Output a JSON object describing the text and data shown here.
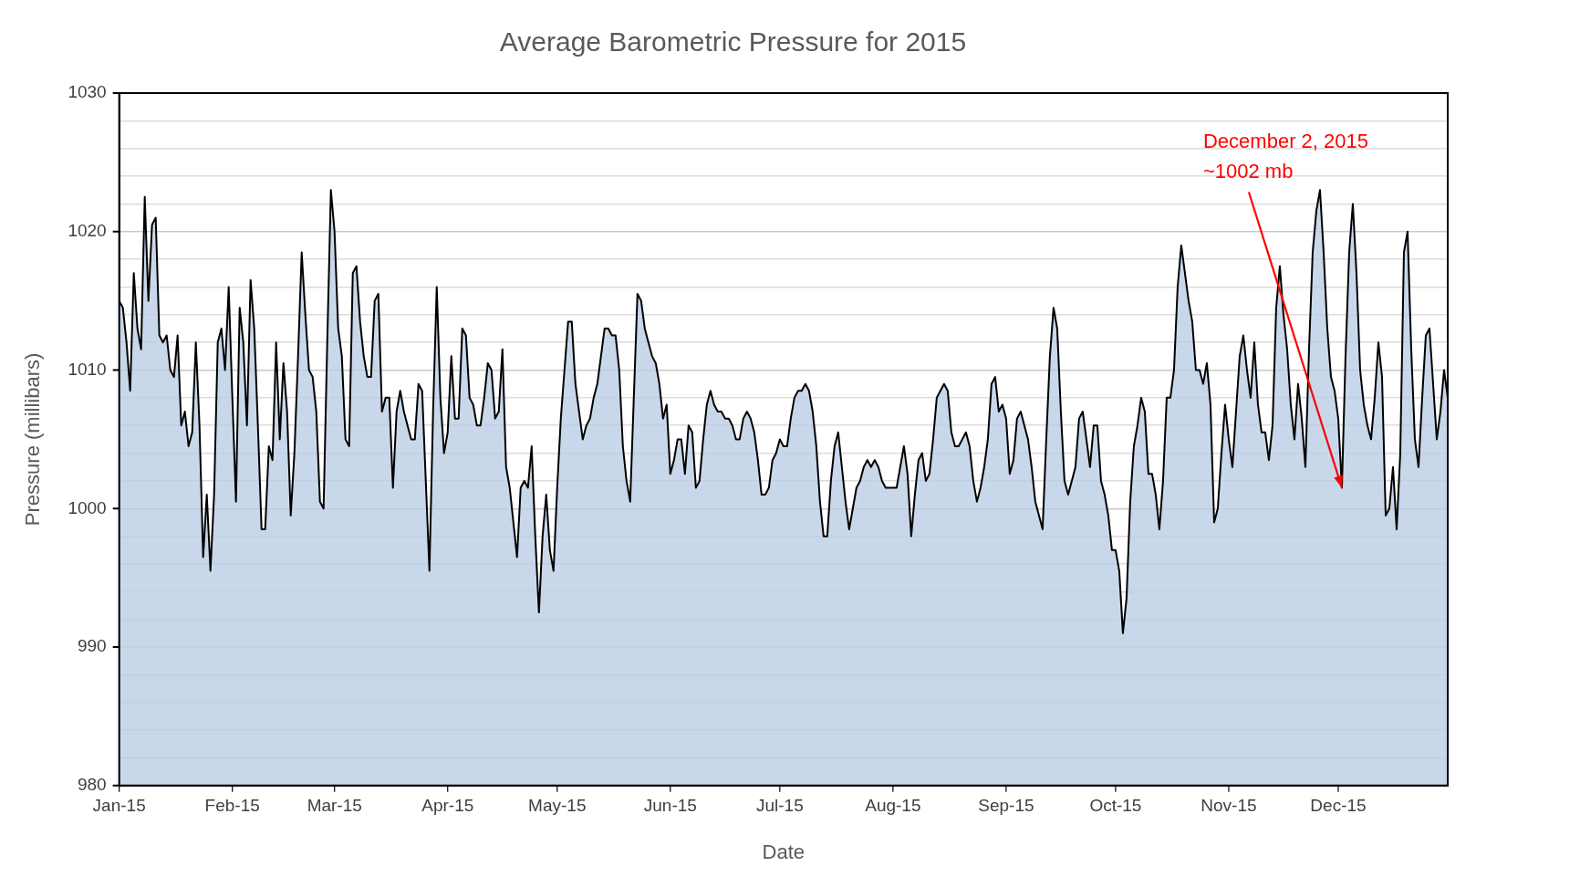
{
  "chart_data": {
    "type": "area",
    "title": "Average Barometric Pressure for 2015",
    "xlabel": "Date",
    "ylabel": "Pressure (millibars)",
    "xlim": [
      "2015-01-01",
      "2015-12-31"
    ],
    "xticks": [
      {
        "value": "2015-01-01",
        "label": "Jan-15"
      },
      {
        "value": "2015-02-01",
        "label": "Feb-15"
      },
      {
        "value": "2015-03-01",
        "label": "Mar-15"
      },
      {
        "value": "2015-04-01",
        "label": "Apr-15"
      },
      {
        "value": "2015-05-01",
        "label": "May-15"
      },
      {
        "value": "2015-06-01",
        "label": "Jun-15"
      },
      {
        "value": "2015-07-01",
        "label": "Jul-15"
      },
      {
        "value": "2015-08-01",
        "label": "Aug-15"
      },
      {
        "value": "2015-09-01",
        "label": "Sep-15"
      },
      {
        "value": "2015-10-01",
        "label": "Oct-15"
      },
      {
        "value": "2015-11-01",
        "label": "Nov-15"
      },
      {
        "value": "2015-12-01",
        "label": "Dec-15"
      }
    ],
    "ylim": [
      980,
      1030
    ],
    "yticks": [
      980,
      {
        "value": 982,
        "label": null
      },
      {
        "value": 984,
        "label": null
      },
      {
        "value": 986,
        "label": null
      },
      {
        "value": 988,
        "label": null
      },
      990,
      {
        "value": 992,
        "label": null
      },
      {
        "value": 994,
        "label": null
      },
      {
        "value": 996,
        "label": null
      },
      {
        "value": 998,
        "label": null
      },
      1000,
      {
        "value": 1002,
        "label": null
      },
      {
        "value": 1004,
        "label": null
      },
      {
        "value": 1006,
        "label": null
      },
      {
        "value": 1008,
        "label": null
      },
      1010,
      {
        "value": 1012,
        "label": null
      },
      {
        "value": 1014,
        "label": null
      },
      {
        "value": 1016,
        "label": null
      },
      {
        "value": 1018,
        "label": null
      },
      1020,
      {
        "value": 1022,
        "label": null
      },
      {
        "value": 1024,
        "label": null
      },
      {
        "value": 1026,
        "label": null
      },
      {
        "value": 1028,
        "label": null
      },
      1030
    ],
    "grid": "y",
    "annotations": [
      {
        "text": "December 2, 2015\n~1002 mb",
        "x": "2015-12-02",
        "y": 1001.5
      }
    ],
    "x": [
      "2015-01-01",
      "2015-01-02",
      "2015-01-03",
      "2015-01-04",
      "2015-01-05",
      "2015-01-06",
      "2015-01-07",
      "2015-01-08",
      "2015-01-09",
      "2015-01-10",
      "2015-01-11",
      "2015-01-12",
      "2015-01-13",
      "2015-01-14",
      "2015-01-15",
      "2015-01-16",
      "2015-01-17",
      "2015-01-18",
      "2015-01-19",
      "2015-01-20",
      "2015-01-21",
      "2015-01-22",
      "2015-01-23",
      "2015-01-24",
      "2015-01-25",
      "2015-01-26",
      "2015-01-27",
      "2015-01-28",
      "2015-01-29",
      "2015-01-30",
      "2015-01-31",
      "2015-02-01",
      "2015-02-02",
      "2015-02-03",
      "2015-02-04",
      "2015-02-05",
      "2015-02-06",
      "2015-02-07",
      "2015-02-08",
      "2015-02-09",
      "2015-02-10",
      "2015-02-11",
      "2015-02-12",
      "2015-02-13",
      "2015-02-14",
      "2015-02-15",
      "2015-02-16",
      "2015-02-17",
      "2015-02-18",
      "2015-02-19",
      "2015-02-20",
      "2015-02-21",
      "2015-02-22",
      "2015-02-23",
      "2015-02-24",
      "2015-02-25",
      "2015-02-26",
      "2015-02-27",
      "2015-02-28",
      "2015-03-01",
      "2015-03-02",
      "2015-03-03",
      "2015-03-04",
      "2015-03-05",
      "2015-03-06",
      "2015-03-07",
      "2015-03-08",
      "2015-03-09",
      "2015-03-10",
      "2015-03-11",
      "2015-03-12",
      "2015-03-13",
      "2015-03-14",
      "2015-03-15",
      "2015-03-16",
      "2015-03-17",
      "2015-03-18",
      "2015-03-19",
      "2015-03-20",
      "2015-03-21",
      "2015-03-22",
      "2015-03-23",
      "2015-03-24",
      "2015-03-25",
      "2015-03-26",
      "2015-03-27",
      "2015-03-28",
      "2015-03-29",
      "2015-03-30",
      "2015-03-31",
      "2015-04-01",
      "2015-04-02",
      "2015-04-03",
      "2015-04-04",
      "2015-04-05",
      "2015-04-06",
      "2015-04-07",
      "2015-04-08",
      "2015-04-09",
      "2015-04-10",
      "2015-04-11",
      "2015-04-12",
      "2015-04-13",
      "2015-04-14",
      "2015-04-15",
      "2015-04-16",
      "2015-04-17",
      "2015-04-18",
      "2015-04-19",
      "2015-04-20",
      "2015-04-21",
      "2015-04-22",
      "2015-04-23",
      "2015-04-24",
      "2015-04-25",
      "2015-04-26",
      "2015-04-27",
      "2015-04-28",
      "2015-04-29",
      "2015-04-30",
      "2015-05-01",
      "2015-05-02",
      "2015-05-03",
      "2015-05-04",
      "2015-05-05",
      "2015-05-06",
      "2015-05-07",
      "2015-05-08",
      "2015-05-09",
      "2015-05-10",
      "2015-05-11",
      "2015-05-12",
      "2015-05-13",
      "2015-05-14",
      "2015-05-15",
      "2015-05-16",
      "2015-05-17",
      "2015-05-18",
      "2015-05-19",
      "2015-05-20",
      "2015-05-21",
      "2015-05-22",
      "2015-05-23",
      "2015-05-24",
      "2015-05-25",
      "2015-05-26",
      "2015-05-27",
      "2015-05-28",
      "2015-05-29",
      "2015-05-30",
      "2015-05-31",
      "2015-06-01",
      "2015-06-02",
      "2015-06-03",
      "2015-06-04",
      "2015-06-05",
      "2015-06-06",
      "2015-06-07",
      "2015-06-08",
      "2015-06-09",
      "2015-06-10",
      "2015-06-11",
      "2015-06-12",
      "2015-06-13",
      "2015-06-14",
      "2015-06-15",
      "2015-06-16",
      "2015-06-17",
      "2015-06-18",
      "2015-06-19",
      "2015-06-20",
      "2015-06-21",
      "2015-06-22",
      "2015-06-23",
      "2015-06-24",
      "2015-06-25",
      "2015-06-26",
      "2015-06-27",
      "2015-06-28",
      "2015-06-29",
      "2015-06-30",
      "2015-07-01",
      "2015-07-02",
      "2015-07-03",
      "2015-07-04",
      "2015-07-05",
      "2015-07-06",
      "2015-07-07",
      "2015-07-08",
      "2015-07-09",
      "2015-07-10",
      "2015-07-11",
      "2015-07-12",
      "2015-07-13",
      "2015-07-14",
      "2015-07-15",
      "2015-07-16",
      "2015-07-17",
      "2015-07-18",
      "2015-07-19",
      "2015-07-20",
      "2015-07-21",
      "2015-07-22",
      "2015-07-23",
      "2015-07-24",
      "2015-07-25",
      "2015-07-26",
      "2015-07-27",
      "2015-07-28",
      "2015-07-29",
      "2015-07-30",
      "2015-07-31",
      "2015-08-01",
      "2015-08-02",
      "2015-08-03",
      "2015-08-04",
      "2015-08-05",
      "2015-08-06",
      "2015-08-07",
      "2015-08-08",
      "2015-08-09",
      "2015-08-10",
      "2015-08-11",
      "2015-08-12",
      "2015-08-13",
      "2015-08-14",
      "2015-08-15",
      "2015-08-16",
      "2015-08-17",
      "2015-08-18",
      "2015-08-19",
      "2015-08-20",
      "2015-08-21",
      "2015-08-22",
      "2015-08-23",
      "2015-08-24",
      "2015-08-25",
      "2015-08-26",
      "2015-08-27",
      "2015-08-28",
      "2015-08-29",
      "2015-08-30",
      "2015-08-31",
      "2015-09-01",
      "2015-09-02",
      "2015-09-03",
      "2015-09-04",
      "2015-09-05",
      "2015-09-06",
      "2015-09-07",
      "2015-09-08",
      "2015-09-09",
      "2015-09-10",
      "2015-09-11",
      "2015-09-12",
      "2015-09-13",
      "2015-09-14",
      "2015-09-15",
      "2015-09-16",
      "2015-09-17",
      "2015-09-18",
      "2015-09-19",
      "2015-09-20",
      "2015-09-21",
      "2015-09-22",
      "2015-09-23",
      "2015-09-24",
      "2015-09-25",
      "2015-09-26",
      "2015-09-27",
      "2015-09-28",
      "2015-09-29",
      "2015-09-30",
      "2015-10-01",
      "2015-10-02",
      "2015-10-03",
      "2015-10-04",
      "2015-10-05",
      "2015-10-06",
      "2015-10-07",
      "2015-10-08",
      "2015-10-09",
      "2015-10-10",
      "2015-10-11",
      "2015-10-12",
      "2015-10-13",
      "2015-10-14",
      "2015-10-15",
      "2015-10-16",
      "2015-10-17",
      "2015-10-18",
      "2015-10-19",
      "2015-10-20",
      "2015-10-21",
      "2015-10-22",
      "2015-10-23",
      "2015-10-24",
      "2015-10-25",
      "2015-10-26",
      "2015-10-27",
      "2015-10-28",
      "2015-10-29",
      "2015-10-30",
      "2015-10-31",
      "2015-11-01",
      "2015-11-02",
      "2015-11-03",
      "2015-11-04",
      "2015-11-05",
      "2015-11-06",
      "2015-11-07",
      "2015-11-08",
      "2015-11-09",
      "2015-11-10",
      "2015-11-11",
      "2015-11-12",
      "2015-11-13",
      "2015-11-14",
      "2015-11-15",
      "2015-11-16",
      "2015-11-17",
      "2015-11-18",
      "2015-11-19",
      "2015-11-20",
      "2015-11-21",
      "2015-11-22",
      "2015-11-23",
      "2015-11-24",
      "2015-11-25",
      "2015-11-26",
      "2015-11-27",
      "2015-11-28",
      "2015-11-29",
      "2015-11-30",
      "2015-12-01",
      "2015-12-02",
      "2015-12-03",
      "2015-12-04",
      "2015-12-05",
      "2015-12-06",
      "2015-12-07",
      "2015-12-08",
      "2015-12-09",
      "2015-12-10",
      "2015-12-11",
      "2015-12-12",
      "2015-12-13",
      "2015-12-14",
      "2015-12-15",
      "2015-12-16",
      "2015-12-17",
      "2015-12-18",
      "2015-12-19",
      "2015-12-20",
      "2015-12-21",
      "2015-12-22",
      "2015-12-23",
      "2015-12-24",
      "2015-12-25",
      "2015-12-26",
      "2015-12-27",
      "2015-12-28",
      "2015-12-29",
      "2015-12-30",
      "2015-12-31"
    ],
    "series": [
      {
        "color": "#c9d7ea",
        "values": [
          1015,
          1014.5,
          1012,
          1008.5,
          1017,
          1013,
          1011.5,
          1022.5,
          1015,
          1020.5,
          1021,
          1012.5,
          1012,
          1012.5,
          1010,
          1009.5,
          1012.5,
          1006,
          1007,
          1004.5,
          1005.5,
          1012,
          1006,
          996.5,
          1001,
          995.5,
          1001,
          1012,
          1013,
          1010,
          1016,
          1008,
          1000.5,
          1014.5,
          1012,
          1006,
          1016.5,
          1013,
          1006,
          998.5,
          998.5,
          1004.5,
          1003.5,
          1012,
          1005,
          1010.5,
          1007,
          999.5,
          1004,
          1011,
          1018.5,
          1014,
          1010,
          1009.5,
          1007,
          1000.5,
          1000,
          1012,
          1023,
          1020,
          1013,
          1011,
          1005,
          1004.5,
          1017,
          1017.5,
          1013.5,
          1011,
          1009.5,
          1009.5,
          1015,
          1015.5,
          1007,
          1008,
          1008,
          1001.5,
          1007,
          1008.5,
          1007,
          1006,
          1005,
          1005,
          1009,
          1008.5,
          1002,
          995.5,
          1007,
          1016,
          1008,
          1004,
          1005.5,
          1011,
          1006.5,
          1006.5,
          1013,
          1012.5,
          1008,
          1007.5,
          1006,
          1006,
          1008,
          1010.5,
          1010,
          1006.5,
          1007,
          1011.5,
          1003,
          1001.5,
          999,
          996.5,
          1001.5,
          1002,
          1001.5,
          1004.5,
          998,
          992.5,
          998,
          1001,
          997,
          995.5,
          1001.5,
          1006.5,
          1010,
          1013.5,
          1013.5,
          1009,
          1007,
          1005,
          1006,
          1006.5,
          1008,
          1009,
          1011,
          1013,
          1013,
          1012.5,
          1012.5,
          1010,
          1004.5,
          1002,
          1000.5,
          1008,
          1015.5,
          1015,
          1013,
          1012,
          1011,
          1010.5,
          1009,
          1006.5,
          1007.5,
          1002.5,
          1003.5,
          1005,
          1005,
          1002.5,
          1006,
          1005.5,
          1001.5,
          1002,
          1005,
          1007.5,
          1008.5,
          1007.5,
          1007,
          1007,
          1006.5,
          1006.5,
          1006,
          1005,
          1005,
          1006.5,
          1007,
          1006.5,
          1005.5,
          1003.5,
          1001,
          1001,
          1001.5,
          1003.5,
          1004,
          1005,
          1004.5,
          1004.5,
          1006.5,
          1008,
          1008.5,
          1008.5,
          1009,
          1008.5,
          1007,
          1004.5,
          1000.5,
          998,
          998,
          1002,
          1004.5,
          1005.5,
          1003,
          1000.5,
          998.5,
          1000,
          1001.5,
          1002,
          1003,
          1003.5,
          1003,
          1003.5,
          1003,
          1002,
          1001.5,
          1001.5,
          1001.5,
          1001.5,
          1003,
          1004.5,
          1002.5,
          998,
          1001,
          1003.5,
          1004,
          1002,
          1002.5,
          1005,
          1008,
          1008.5,
          1009,
          1008.5,
          1005.5,
          1004.5,
          1004.5,
          1005,
          1005.5,
          1004.5,
          1002,
          1000.5,
          1001.5,
          1003,
          1005,
          1009,
          1009.5,
          1007,
          1007.5,
          1006.5,
          1002.5,
          1003.5,
          1006.5,
          1007,
          1006,
          1005,
          1003,
          1000.5,
          999.5,
          998.5,
          1005,
          1011,
          1014.5,
          1013,
          1007,
          1002,
          1001,
          1002,
          1003,
          1006.5,
          1007,
          1005,
          1003,
          1006,
          1006,
          1002,
          1001,
          999.5,
          997,
          997,
          995.5,
          991,
          993.5,
          1000.5,
          1004.5,
          1006,
          1008,
          1007,
          1002.5,
          1002.5,
          1001,
          998.5,
          1002,
          1008,
          1008,
          1010,
          1016,
          1019,
          1017,
          1015,
          1013.5,
          1010,
          1010,
          1009,
          1010.5,
          1007.5,
          999,
          1000,
          1004,
          1007.5,
          1005,
          1003,
          1007,
          1011,
          1012.5,
          1010,
          1008,
          1012,
          1007.5,
          1005.5,
          1005.5,
          1003.5,
          1006,
          1014.5,
          1017.5,
          1014,
          1011.5,
          1007.5,
          1005,
          1009,
          1006.5,
          1003,
          1011.5,
          1018.5,
          1021.5,
          1023,
          1018.5,
          1013,
          1009.5,
          1008.5,
          1006.5,
          1001.5,
          1011,
          1018.5,
          1022,
          1017,
          1010,
          1007.5,
          1006,
          1005,
          1008,
          1012,
          1009.5,
          999.5,
          1000,
          1003,
          998.5,
          1004,
          1018.5,
          1020,
          1011.5,
          1005,
          1003,
          1008,
          1012.5,
          1013,
          1009,
          1005,
          1007,
          1010,
          1008
        ]
      }
    ]
  }
}
